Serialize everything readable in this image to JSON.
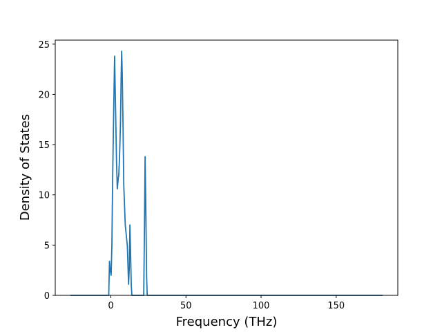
{
  "chart_data": {
    "type": "line",
    "title": "",
    "xlabel": "Frequency (THz)",
    "ylabel": "Density of States",
    "xlim": [
      -37,
      191
    ],
    "ylim": [
      0,
      25.4
    ],
    "xticks": [
      0,
      50,
      100,
      150
    ],
    "yticks": [
      0,
      5,
      10,
      15,
      20,
      25
    ],
    "grid": false,
    "legend": "none",
    "series": [
      {
        "color": "#1f77b4",
        "x": [
          -27,
          -1.4,
          -0.9,
          -0.4,
          0.2,
          0.7,
          1.2,
          1.8,
          2.5,
          3.1,
          3.8,
          4.3,
          4.9,
          5.3,
          5.8,
          6.4,
          6.9,
          7.2,
          7.6,
          8.1,
          8.6,
          9.1,
          9.6,
          10.2,
          11.0,
          11.8,
          12.3,
          12.7,
          13.1,
          13.6,
          14.0,
          14.4,
          21.9,
          22.4,
          22.8,
          23.3,
          23.8,
          24.2,
          181
        ],
        "y": [
          0,
          0,
          3.4,
          2.5,
          2.0,
          5.0,
          11.5,
          17.5,
          23.8,
          19.0,
          13.2,
          10.6,
          11.6,
          12.0,
          13.8,
          17.0,
          22.0,
          24.3,
          22.0,
          17.0,
          11.0,
          9.0,
          7.0,
          6.1,
          4.9,
          1.1,
          2.8,
          7.0,
          4.5,
          1.0,
          0,
          0,
          0,
          7.0,
          13.8,
          8.5,
          2.0,
          0,
          0
        ]
      }
    ]
  }
}
